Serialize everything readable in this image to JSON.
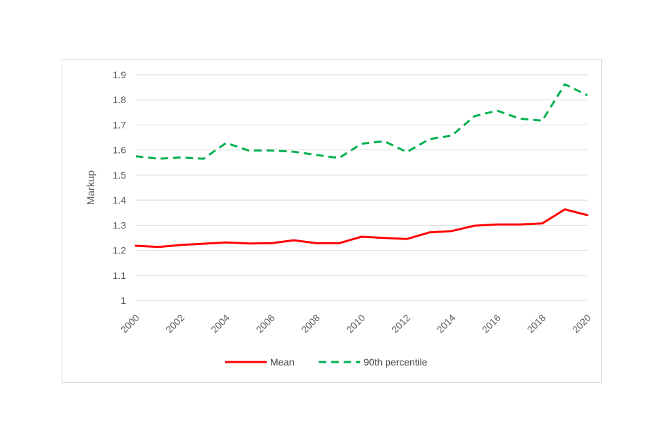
{
  "chart_data": {
    "type": "line",
    "title": "",
    "xlabel": "",
    "ylabel": "Markup",
    "x": [
      2000,
      2001,
      2002,
      2003,
      2004,
      2005,
      2006,
      2007,
      2008,
      2009,
      2010,
      2011,
      2012,
      2013,
      2014,
      2015,
      2016,
      2017,
      2018,
      2019,
      2020
    ],
    "x_tick_labels": [
      "2000",
      "2002",
      "2004",
      "2006",
      "2008",
      "2010",
      "2012",
      "2014",
      "2016",
      "2018",
      "2020"
    ],
    "y_tick_labels": [
      "1",
      "1.1",
      "1.2",
      "1.3",
      "1.4",
      "1.5",
      "1.6",
      "1.7",
      "1.8",
      "1.9"
    ],
    "ylim": [
      1,
      1.9
    ],
    "grid": true,
    "legend_position": "bottom",
    "series": [
      {
        "name": "Mean",
        "color": "#ff0000",
        "style": "solid",
        "values": [
          1.218,
          1.213,
          1.221,
          1.226,
          1.231,
          1.227,
          1.228,
          1.24,
          1.228,
          1.228,
          1.254,
          1.249,
          1.245,
          1.271,
          1.277,
          1.298,
          1.303,
          1.303,
          1.307,
          1.363,
          1.34
        ]
      },
      {
        "name": "90th percentile",
        "color": "#00b050",
        "style": "dashed",
        "values": [
          1.575,
          1.565,
          1.57,
          1.565,
          1.628,
          1.598,
          1.598,
          1.593,
          1.58,
          1.568,
          1.625,
          1.635,
          1.592,
          1.643,
          1.658,
          1.735,
          1.757,
          1.725,
          1.717,
          1.862,
          1.818
        ]
      }
    ]
  }
}
